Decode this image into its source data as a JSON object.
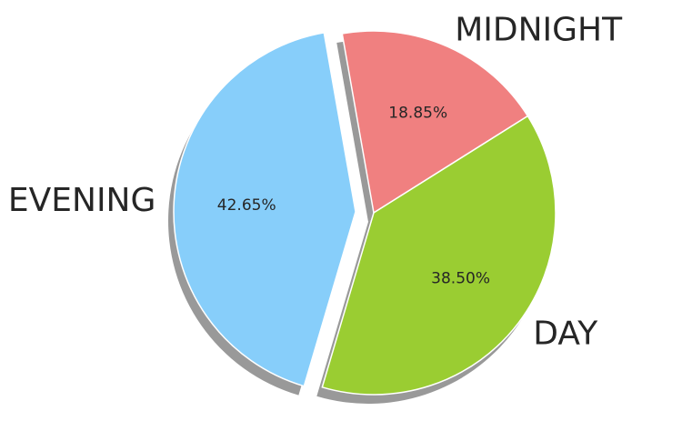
{
  "chart_data": {
    "type": "pie",
    "title": "",
    "slices": [
      {
        "label": "MIDNIGHT",
        "value": 18.85,
        "pct_label": "18.85%",
        "color": "#f08080",
        "exploded": false
      },
      {
        "label": "DAY",
        "value": 38.5,
        "pct_label": "38.50%",
        "color": "#9acd32",
        "exploded": false
      },
      {
        "label": "EVENING",
        "value": 42.65,
        "pct_label": "42.65%",
        "color": "#87cefa",
        "exploded": true
      }
    ],
    "shadow": true,
    "start_angle_deg": 100,
    "direction": "clockwise"
  }
}
